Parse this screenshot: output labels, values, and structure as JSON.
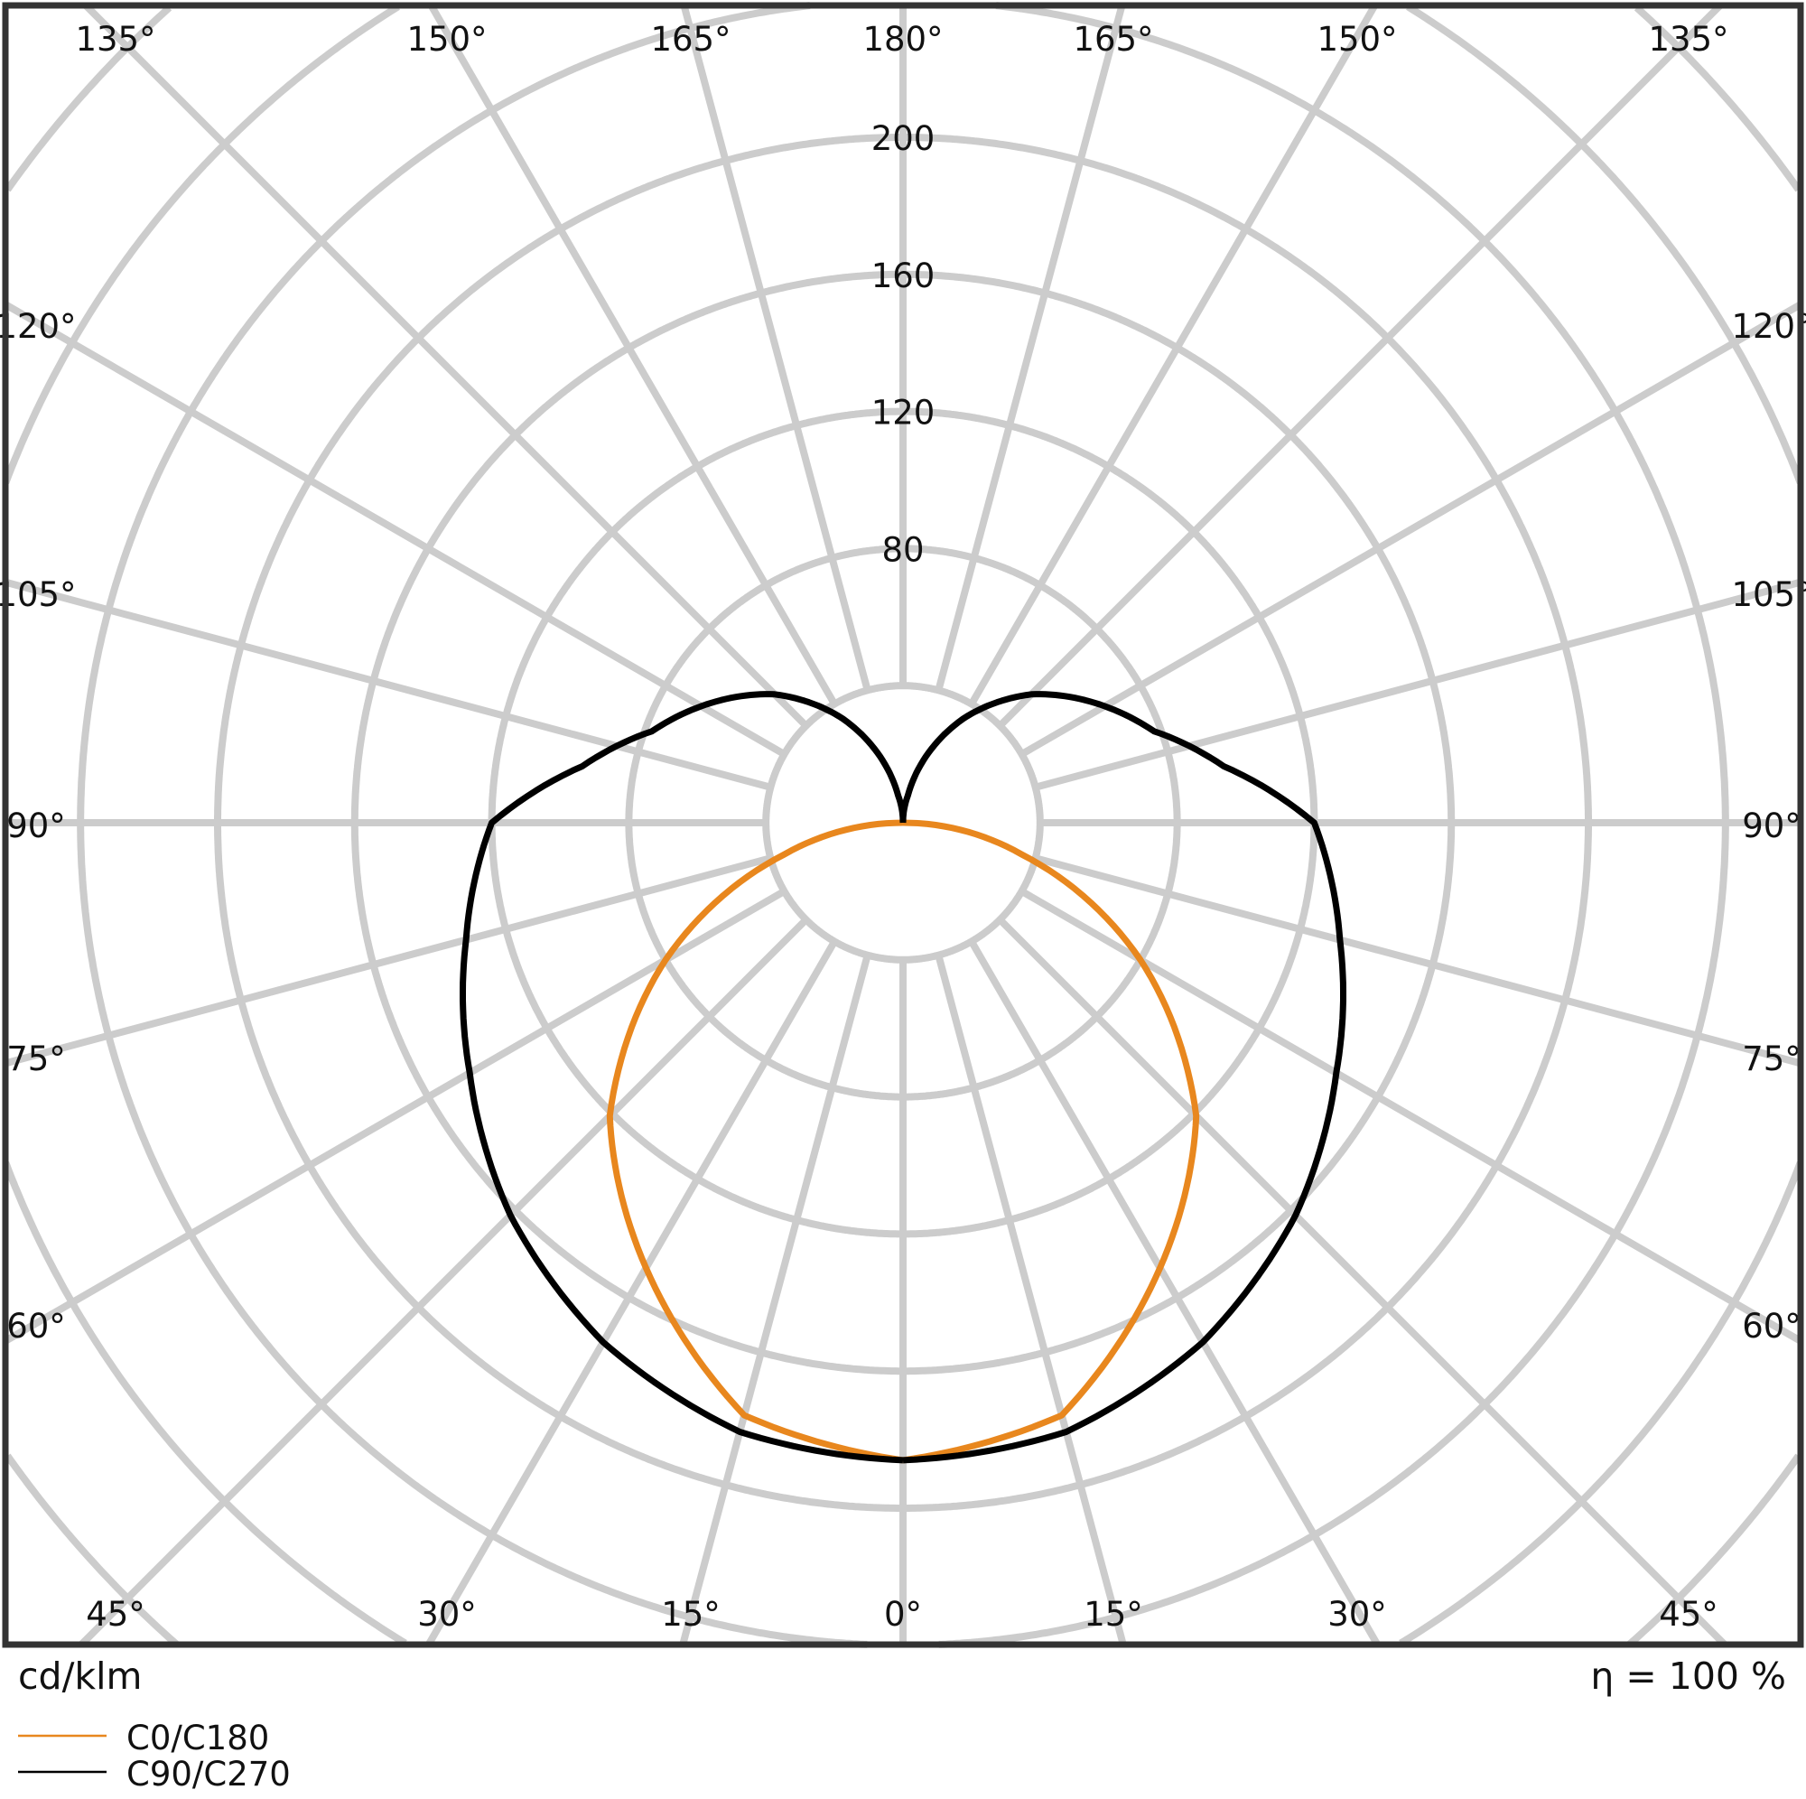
{
  "chart_data": {
    "type": "polar",
    "unit_label": "cd/klm",
    "efficiency_label": "η = 100 %",
    "radial_ticks": [
      "80",
      "120",
      "160",
      "200"
    ],
    "radial_tick_values": [
      80,
      120,
      160,
      200
    ],
    "ring_step": 40,
    "grid": true,
    "angle_labels_top": [
      "135°",
      "150°",
      "165°",
      "180°",
      "165°",
      "150°",
      "135°"
    ],
    "angle_labels_left": [
      "120°",
      "105°",
      "90°",
      "75°",
      "60°"
    ],
    "angle_labels_right": [
      "120°",
      "105°",
      "90°",
      "75°",
      "60°"
    ],
    "angle_labels_bottom": [
      "45°",
      "30°",
      "15°",
      "0°",
      "15°",
      "30°",
      "45°"
    ],
    "legend_placement": "bottom-left",
    "series": [
      {
        "name": "C0/C180",
        "color": "#e8871e",
        "gamma": [
          0,
          15,
          30,
          45,
          60,
          75,
          90,
          180
        ],
        "values": [
          186,
          179,
          150,
          121,
          80,
          36,
          0,
          0
        ]
      },
      {
        "name": "C90/C270",
        "color": "#000000",
        "gamma": [
          0,
          15,
          30,
          45,
          60,
          75,
          90,
          100,
          110,
          120,
          135,
          150,
          165,
          170,
          180
        ],
        "values": [
          186,
          184,
          175,
          162,
          146,
          132,
          120,
          95,
          78,
          68,
          53,
          35,
          15,
          8,
          0
        ]
      }
    ]
  }
}
